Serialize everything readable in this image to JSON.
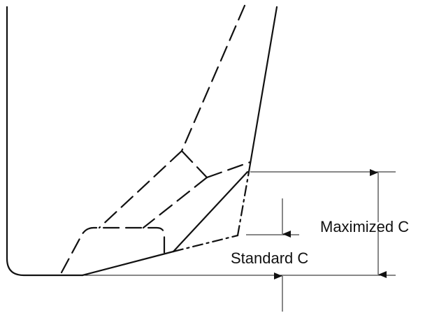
{
  "labels": {
    "maximized": "Maximized C",
    "standard": "Standard C"
  },
  "colors": {
    "ink": "#111111",
    "background": "#ffffff"
  }
}
